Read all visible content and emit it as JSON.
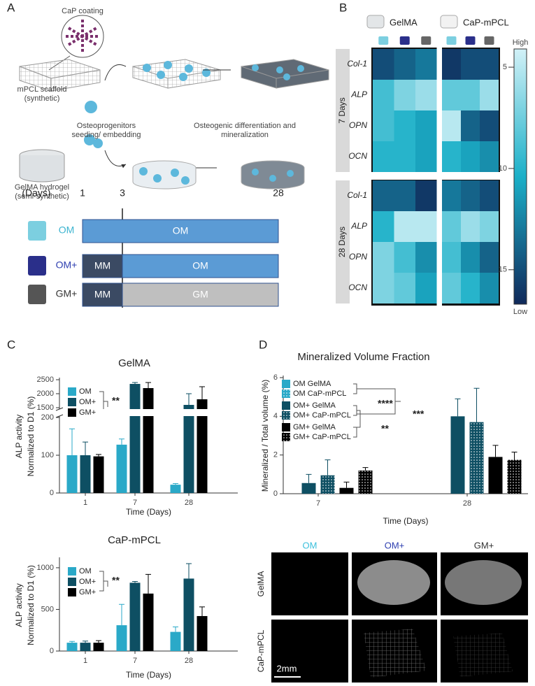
{
  "panel_labels": [
    "A",
    "B",
    "C",
    "D"
  ],
  "schematic": {
    "cap_coating": "CaP coating",
    "scaffold": [
      "mPCL scaffold",
      "(synthetic)"
    ],
    "seeding": [
      "Osteoprogenitors",
      "seeding/ embedding"
    ],
    "differentiation": [
      "Osteogenic differentiation and",
      "mineralization"
    ],
    "hydrogel": [
      "GelMA hydrogel",
      "(semi-synthetic)"
    ]
  },
  "timeline": {
    "axis_label": "(Days)",
    "ticks": [
      1,
      3,
      28
    ],
    "rows": [
      {
        "label": "OM",
        "color": "#3cb4d0",
        "segments": [
          "OM"
        ]
      },
      {
        "label": "OM+",
        "color": "#2e3fb0",
        "segments": [
          "MM",
          "OM"
        ]
      },
      {
        "label": "GM+",
        "color": "#333333",
        "segments": [
          "MM",
          "GM"
        ]
      }
    ]
  },
  "chart_data": [
    {
      "type": "heatmap",
      "groups": [
        "GelMA",
        "CaP-mPCL"
      ],
      "blocks": [
        "7 Days",
        "28 Days"
      ],
      "genes": [
        "Col-1",
        "ALP",
        "OPN",
        "OCN"
      ],
      "values": [
        [
          15,
          14,
          13,
          16,
          15,
          15
        ],
        [
          9,
          7,
          6,
          8,
          8,
          6
        ],
        [
          9,
          10,
          11,
          5,
          14,
          15
        ],
        [
          10,
          10,
          11,
          10,
          11,
          12
        ],
        [
          14,
          14,
          16,
          13,
          14,
          15
        ],
        [
          10,
          5,
          5,
          8,
          6,
          7
        ],
        [
          7,
          9,
          12,
          9,
          12,
          14
        ],
        [
          7,
          8,
          11,
          8,
          10,
          12
        ]
      ],
      "colors": [
        "#d2f1f7",
        "#1bb0c8",
        "#10295a"
      ],
      "clim": [
        4.1,
        16.7
      ],
      "cticks": [
        5,
        10,
        15
      ],
      "colorbar_top": "High",
      "colorbar_bottom": "Low"
    },
    {
      "type": "bar",
      "title": "GelMA",
      "ylabel": [
        "ALP activity",
        "Normalized to D1 (%)"
      ],
      "xlabel": "Time (Days)",
      "categories": [
        "1",
        "7",
        "28"
      ],
      "series": [
        {
          "name": "OM",
          "color": "#2aa9c8",
          "values": [
            100,
            128,
            22
          ],
          "errors": [
            70,
            15,
            3
          ]
        },
        {
          "name": "OM+",
          "color": "#0e4f63",
          "values": [
            100,
            2350,
            1600
          ],
          "errors": [
            35,
            50,
            400
          ]
        },
        {
          "name": "GM+",
          "color": "#000000",
          "values": [
            97,
            2200,
            1800
          ],
          "errors": [
            5,
            200,
            450
          ]
        }
      ],
      "ylim": [
        0,
        2500
      ],
      "ybreak": [
        200,
        1500
      ],
      "yticks": [
        0,
        100,
        200,
        1500,
        2000,
        2500
      ],
      "annotations": [
        "**"
      ]
    },
    {
      "type": "bar",
      "title": "CaP-mPCL",
      "ylabel": [
        "ALP activity",
        "Normalized to D1 (%)"
      ],
      "xlabel": "Time (Days)",
      "categories": [
        "1",
        "7",
        "28"
      ],
      "series": [
        {
          "name": "OM",
          "color": "#2aa9c8",
          "values": [
            100,
            310,
            230
          ],
          "errors": [
            15,
            250,
            60
          ]
        },
        {
          "name": "OM+",
          "color": "#0e4f63",
          "values": [
            100,
            820,
            870
          ],
          "errors": [
            20,
            15,
            180
          ]
        },
        {
          "name": "GM+",
          "color": "#000000",
          "values": [
            100,
            690,
            420
          ],
          "errors": [
            25,
            230,
            110
          ]
        }
      ],
      "ylim": [
        0,
        1100
      ],
      "yticks": [
        0,
        500,
        1000
      ],
      "annotations": [
        "**"
      ]
    },
    {
      "type": "bar",
      "title": "Mineralized Volume Fraction",
      "ylabel": [
        "Mineralized / Total volume (%)"
      ],
      "xlabel": "Time (Days)",
      "categories": [
        "7",
        "28"
      ],
      "series": [
        {
          "name": "OM GelMA",
          "color": "#2aa9c8",
          "values": [
            0,
            0
          ],
          "errors": [
            null,
            null
          ]
        },
        {
          "name": "OM CaP-mPCL",
          "color": "#2aa9c8",
          "pattern": "dots",
          "values": [
            0,
            0
          ],
          "errors": [
            null,
            null
          ]
        },
        {
          "name": "OM+ GelMA",
          "color": "#0e4f63",
          "values": [
            0.55,
            4.0
          ],
          "errors": [
            0.45,
            0.9
          ]
        },
        {
          "name": "OM+ CaP-mPCL",
          "color": "#0e4f63",
          "pattern": "dots",
          "values": [
            0.95,
            3.7
          ],
          "errors": [
            0.8,
            1.75
          ]
        },
        {
          "name": "GM+ GelMA",
          "color": "#000000",
          "values": [
            0.3,
            1.9
          ],
          "errors": [
            0.3,
            0.6
          ]
        },
        {
          "name": "GM+ CaP-mPCL",
          "color": "#000000",
          "pattern": "dots",
          "values": [
            1.2,
            1.75
          ],
          "errors": [
            0.15,
            0.4
          ]
        }
      ],
      "ylim": [
        0,
        6
      ],
      "yticks": [
        0,
        2,
        4,
        6
      ],
      "annotations": [
        "****",
        "***",
        "**"
      ]
    }
  ],
  "microct": {
    "columns": [
      {
        "label": "OM",
        "color": "#3cc0dc"
      },
      {
        "label": "OM+",
        "color": "#2e3fb0"
      },
      {
        "label": "GM+",
        "color": "#333333"
      }
    ],
    "rows": [
      "GelMA",
      "CaP-mPCL"
    ],
    "scale_bar": "2mm"
  }
}
